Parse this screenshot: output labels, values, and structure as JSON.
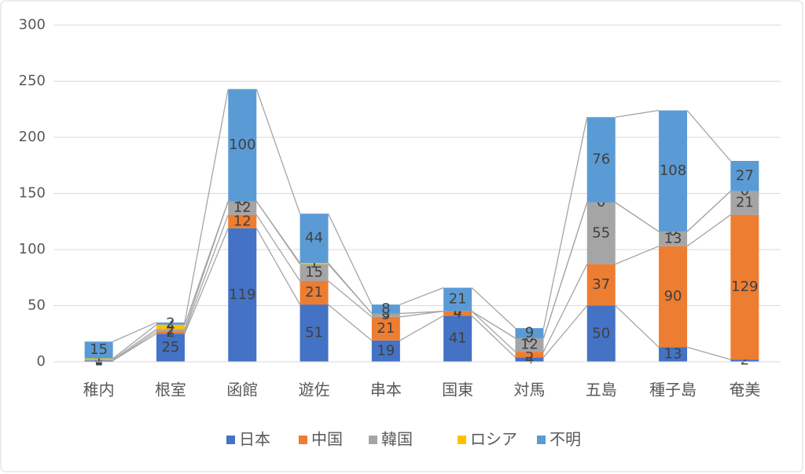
{
  "chart_data": {
    "type": "stacked_bar",
    "categories": [
      "稚内",
      "根室",
      "函館",
      "遊佐",
      "串本",
      "国東",
      "対馬",
      "五島",
      "種子島",
      "奄美"
    ],
    "series": [
      {
        "name": "日本",
        "color": "#4472c4",
        "values": [
          1,
          25,
          119,
          51,
          19,
          41,
          4,
          50,
          13,
          2
        ]
      },
      {
        "name": "中国",
        "color": "#ed7d31",
        "values": [
          0,
          2,
          12,
          21,
          21,
          4,
          5,
          37,
          90,
          129
        ]
      },
      {
        "name": "韓国",
        "color": "#a5a5a5",
        "values": [
          1,
          2,
          12,
          15,
          3,
          0,
          12,
          55,
          13,
          21
        ]
      },
      {
        "name": "ロシア",
        "color": "#ffc000",
        "values": [
          1,
          4,
          0,
          1,
          0,
          0,
          0,
          0,
          0,
          0
        ]
      },
      {
        "name": "不明",
        "color": "#5b9bd5",
        "values": [
          15,
          2,
          100,
          44,
          8,
          21,
          9,
          76,
          108,
          27
        ]
      }
    ],
    "ylim": [
      0,
      300
    ],
    "yticks": [
      0,
      50,
      100,
      150,
      200,
      250,
      300
    ],
    "grid": true,
    "legend": "bottom"
  }
}
